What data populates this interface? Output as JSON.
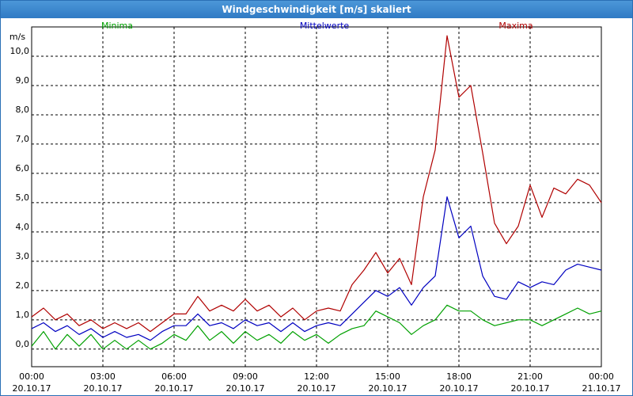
{
  "window": {
    "title": "Windgeschwindigkeit [m/s] skaliert"
  },
  "chart_data": {
    "type": "line",
    "title": "Windgeschwindigkeit [m/s] skaliert",
    "ylabel": "m/s",
    "xlabel": "",
    "ylim": [
      -0.6,
      11.0
    ],
    "grid": true,
    "legend_position": "top",
    "x_ticks": [
      {
        "time": "00:00",
        "date": "20.10.17",
        "hour": 0
      },
      {
        "time": "03:00",
        "date": "20.10.17",
        "hour": 3
      },
      {
        "time": "06:00",
        "date": "20.10.17",
        "hour": 6
      },
      {
        "time": "09:00",
        "date": "20.10.17",
        "hour": 9
      },
      {
        "time": "12:00",
        "date": "20.10.17",
        "hour": 12
      },
      {
        "time": "15:00",
        "date": "20.10.17",
        "hour": 15
      },
      {
        "time": "18:00",
        "date": "20.10.17",
        "hour": 18
      },
      {
        "time": "21:00",
        "date": "20.10.17",
        "hour": 21
      },
      {
        "time": "00:00",
        "date": "21.10.17",
        "hour": 24
      }
    ],
    "y_ticks": [
      "0,0",
      "1,0",
      "2,0",
      "3,0",
      "4,0",
      "5,0",
      "6,0",
      "7,0",
      "8,0",
      "9,0",
      "10,0"
    ],
    "y_tick_values": [
      0,
      1,
      2,
      3,
      4,
      5,
      6,
      7,
      8,
      9,
      10
    ],
    "series": [
      {
        "name": "Minima",
        "color": "#00a000",
        "values": [
          [
            0.0,
            0.1
          ],
          [
            0.5,
            0.6
          ],
          [
            1.0,
            0.0
          ],
          [
            1.5,
            0.5
          ],
          [
            2.0,
            0.1
          ],
          [
            2.5,
            0.5
          ],
          [
            3.0,
            0.0
          ],
          [
            3.5,
            0.3
          ],
          [
            4.0,
            0.0
          ],
          [
            4.5,
            0.3
          ],
          [
            5.0,
            0.0
          ],
          [
            5.5,
            0.2
          ],
          [
            6.0,
            0.5
          ],
          [
            6.5,
            0.3
          ],
          [
            7.0,
            0.8
          ],
          [
            7.5,
            0.3
          ],
          [
            8.0,
            0.6
          ],
          [
            8.5,
            0.2
          ],
          [
            9.0,
            0.6
          ],
          [
            9.5,
            0.3
          ],
          [
            10.0,
            0.5
          ],
          [
            10.5,
            0.2
          ],
          [
            11.0,
            0.6
          ],
          [
            11.5,
            0.3
          ],
          [
            12.0,
            0.5
          ],
          [
            12.5,
            0.2
          ],
          [
            13.0,
            0.5
          ],
          [
            13.5,
            0.7
          ],
          [
            14.0,
            0.8
          ],
          [
            14.5,
            1.3
          ],
          [
            15.0,
            1.1
          ],
          [
            15.5,
            0.9
          ],
          [
            16.0,
            0.5
          ],
          [
            16.5,
            0.8
          ],
          [
            17.0,
            1.0
          ],
          [
            17.5,
            1.5
          ],
          [
            18.0,
            1.3
          ],
          [
            18.5,
            1.3
          ],
          [
            19.0,
            1.0
          ],
          [
            19.5,
            0.8
          ],
          [
            20.0,
            0.9
          ],
          [
            20.5,
            1.0
          ],
          [
            21.0,
            1.0
          ],
          [
            21.5,
            0.8
          ],
          [
            22.0,
            1.0
          ],
          [
            22.5,
            1.2
          ],
          [
            23.0,
            1.4
          ],
          [
            23.5,
            1.2
          ],
          [
            24.0,
            1.3
          ]
        ]
      },
      {
        "name": "Mittelwerte",
        "color": "#0000c0",
        "values": [
          [
            0.0,
            0.7
          ],
          [
            0.5,
            0.9
          ],
          [
            1.0,
            0.6
          ],
          [
            1.5,
            0.8
          ],
          [
            2.0,
            0.5
          ],
          [
            2.5,
            0.7
          ],
          [
            3.0,
            0.4
          ],
          [
            3.5,
            0.6
          ],
          [
            4.0,
            0.4
          ],
          [
            4.5,
            0.5
          ],
          [
            5.0,
            0.3
          ],
          [
            5.5,
            0.6
          ],
          [
            6.0,
            0.8
          ],
          [
            6.5,
            0.8
          ],
          [
            7.0,
            1.2
          ],
          [
            7.5,
            0.8
          ],
          [
            8.0,
            0.9
          ],
          [
            8.5,
            0.7
          ],
          [
            9.0,
            1.0
          ],
          [
            9.5,
            0.8
          ],
          [
            10.0,
            0.9
          ],
          [
            10.5,
            0.6
          ],
          [
            11.0,
            0.9
          ],
          [
            11.5,
            0.6
          ],
          [
            12.0,
            0.8
          ],
          [
            12.5,
            0.9
          ],
          [
            13.0,
            0.8
          ],
          [
            13.5,
            1.2
          ],
          [
            14.0,
            1.6
          ],
          [
            14.5,
            2.0
          ],
          [
            15.0,
            1.8
          ],
          [
            15.5,
            2.1
          ],
          [
            16.0,
            1.5
          ],
          [
            16.5,
            2.1
          ],
          [
            17.0,
            2.5
          ],
          [
            17.5,
            5.2
          ],
          [
            18.0,
            3.8
          ],
          [
            18.5,
            4.2
          ],
          [
            19.0,
            2.5
          ],
          [
            19.5,
            1.8
          ],
          [
            20.0,
            1.7
          ],
          [
            20.5,
            2.3
          ],
          [
            21.0,
            2.1
          ],
          [
            21.5,
            2.3
          ],
          [
            22.0,
            2.2
          ],
          [
            22.5,
            2.7
          ],
          [
            23.0,
            2.9
          ],
          [
            23.5,
            2.8
          ],
          [
            24.0,
            2.7
          ]
        ]
      },
      {
        "name": "Maxima",
        "color": "#b00000",
        "values": [
          [
            0.0,
            1.1
          ],
          [
            0.5,
            1.4
          ],
          [
            1.0,
            1.0
          ],
          [
            1.5,
            1.2
          ],
          [
            2.0,
            0.8
          ],
          [
            2.5,
            1.0
          ],
          [
            3.0,
            0.7
          ],
          [
            3.5,
            0.9
          ],
          [
            4.0,
            0.7
          ],
          [
            4.5,
            0.9
          ],
          [
            5.0,
            0.6
          ],
          [
            5.5,
            0.9
          ],
          [
            6.0,
            1.2
          ],
          [
            6.5,
            1.2
          ],
          [
            7.0,
            1.8
          ],
          [
            7.5,
            1.3
          ],
          [
            8.0,
            1.5
          ],
          [
            8.5,
            1.3
          ],
          [
            9.0,
            1.7
          ],
          [
            9.5,
            1.3
          ],
          [
            10.0,
            1.5
          ],
          [
            10.5,
            1.1
          ],
          [
            11.0,
            1.4
          ],
          [
            11.5,
            1.0
          ],
          [
            12.0,
            1.3
          ],
          [
            12.5,
            1.4
          ],
          [
            13.0,
            1.3
          ],
          [
            13.5,
            2.2
          ],
          [
            14.0,
            2.7
          ],
          [
            14.5,
            3.3
          ],
          [
            15.0,
            2.6
          ],
          [
            15.5,
            3.1
          ],
          [
            16.0,
            2.2
          ],
          [
            16.5,
            5.2
          ],
          [
            17.0,
            6.8
          ],
          [
            17.5,
            10.7
          ],
          [
            18.0,
            8.6
          ],
          [
            18.5,
            9.0
          ],
          [
            19.0,
            6.7
          ],
          [
            19.5,
            4.3
          ],
          [
            20.0,
            3.6
          ],
          [
            20.5,
            4.2
          ],
          [
            21.0,
            5.6
          ],
          [
            21.5,
            4.5
          ],
          [
            22.0,
            5.5
          ],
          [
            22.5,
            5.3
          ],
          [
            23.0,
            5.8
          ],
          [
            23.5,
            5.6
          ],
          [
            24.0,
            5.0
          ]
        ]
      }
    ]
  }
}
